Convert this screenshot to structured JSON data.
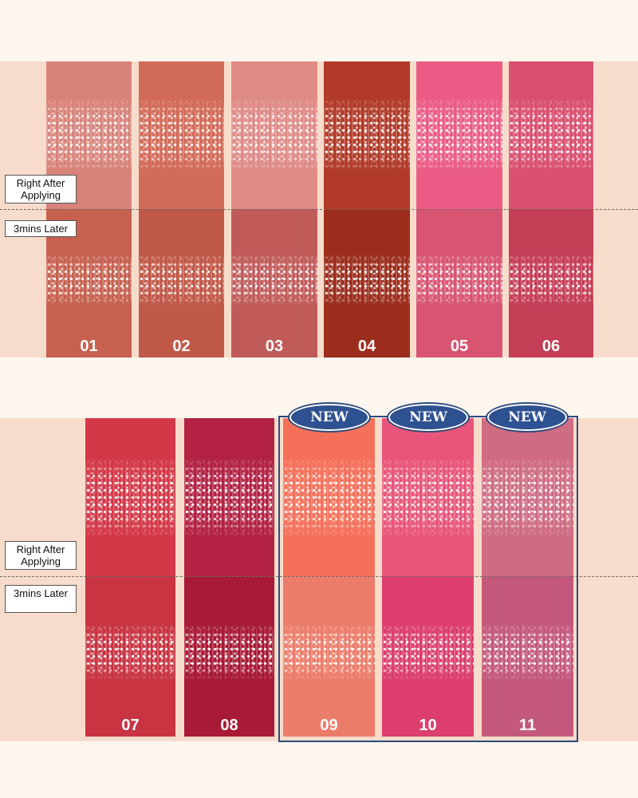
{
  "labels": {
    "right_after": "Right After Applying",
    "later": "3mins Later"
  },
  "badge_text": "NEW",
  "shades": [
    {
      "num": "01",
      "color_top": "#d8837a",
      "color_bottom": "#c7604f"
    },
    {
      "num": "02",
      "color_top": "#d26a58",
      "color_bottom": "#c05848"
    },
    {
      "num": "03",
      "color_top": "#df8a86",
      "color_bottom": "#c05b5a"
    },
    {
      "num": "04",
      "color_top": "#b23a28",
      "color_bottom": "#9c2d1c"
    },
    {
      "num": "05",
      "color_top": "#ea5c86",
      "color_bottom": "#d85572"
    },
    {
      "num": "06",
      "color_top": "#d8506e",
      "color_bottom": "#c43e56"
    },
    {
      "num": "07",
      "color_top": "#d33848",
      "color_bottom": "#c83442"
    },
    {
      "num": "08",
      "color_top": "#b32243",
      "color_bottom": "#a81a36"
    },
    {
      "num": "09",
      "color_top": "#f5705a",
      "color_bottom": "#ec7c6a"
    },
    {
      "num": "10",
      "color_top": "#e9557a",
      "color_bottom": "#dc3e6e"
    },
    {
      "num": "11",
      "color_top": "#cf6b82",
      "color_bottom": "#c4587a"
    }
  ]
}
